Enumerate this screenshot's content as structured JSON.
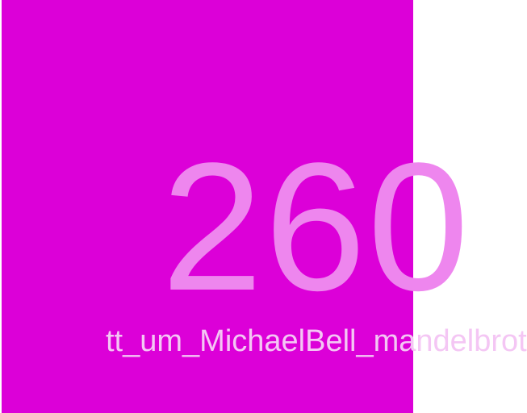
{
  "tile": {
    "number": "260",
    "caption": "tt_um_MichaelBell_mandelbrot",
    "background_color": "#dc00d8",
    "number_color": "#ee86ee",
    "caption_color": "#f4c6f4"
  }
}
